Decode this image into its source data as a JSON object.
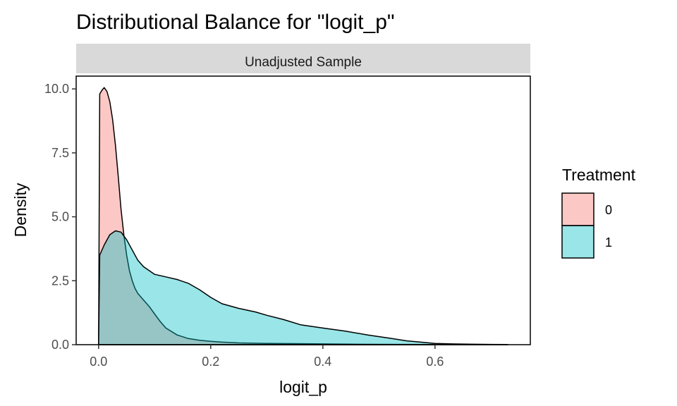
{
  "chart_data": {
    "type": "area",
    "title": "Distributional Balance for \"logit_p\"",
    "facet_label": "Unadjusted Sample",
    "xlabel": "logit_p",
    "ylabel": "Density",
    "xlim": [
      -0.04,
      0.77
    ],
    "ylim": [
      0,
      10.5
    ],
    "x_ticks": [
      0.0,
      0.2,
      0.4,
      0.6
    ],
    "x_tick_labels": [
      "0.0",
      "0.2",
      "0.4",
      "0.6"
    ],
    "y_ticks": [
      0.0,
      2.5,
      5.0,
      7.5,
      10.0
    ],
    "y_tick_labels": [
      "0.0",
      "2.5",
      "5.0",
      "7.5",
      "10.0"
    ],
    "legend": {
      "title": "Treatment",
      "position": "right"
    },
    "grid": false,
    "series": [
      {
        "name": "0",
        "color": "#F8766D",
        "fill_opacity": 0.4,
        "x": [
          0.0,
          0.002,
          0.006,
          0.01,
          0.015,
          0.02,
          0.025,
          0.03,
          0.035,
          0.04,
          0.045,
          0.05,
          0.055,
          0.06,
          0.065,
          0.07,
          0.08,
          0.09,
          0.1,
          0.11,
          0.12,
          0.14,
          0.16,
          0.18,
          0.2,
          0.22,
          0.25,
          0.3,
          0.35,
          0.4,
          0.45,
          0.5,
          0.55,
          0.6
        ],
        "y": [
          0,
          9.8,
          9.95,
          10.05,
          9.9,
          9.5,
          8.8,
          7.8,
          6.6,
          5.3,
          4.3,
          3.5,
          2.9,
          2.5,
          2.2,
          2.0,
          1.75,
          1.5,
          1.2,
          0.9,
          0.65,
          0.38,
          0.24,
          0.17,
          0.13,
          0.1,
          0.07,
          0.05,
          0.04,
          0.03,
          0.02,
          0.015,
          0.01,
          0.005
        ]
      },
      {
        "name": "1",
        "color": "#00BFC4",
        "fill_opacity": 0.4,
        "x": [
          0.0,
          0.002,
          0.01,
          0.02,
          0.03,
          0.04,
          0.05,
          0.06,
          0.07,
          0.08,
          0.1,
          0.12,
          0.14,
          0.16,
          0.18,
          0.2,
          0.22,
          0.25,
          0.28,
          0.3,
          0.33,
          0.36,
          0.4,
          0.44,
          0.48,
          0.52,
          0.55,
          0.58,
          0.6,
          0.63,
          0.66,
          0.7,
          0.73
        ],
        "y": [
          0,
          3.5,
          3.9,
          4.3,
          4.45,
          4.4,
          4.1,
          3.7,
          3.3,
          3.05,
          2.75,
          2.65,
          2.55,
          2.4,
          2.15,
          1.85,
          1.6,
          1.42,
          1.28,
          1.15,
          0.98,
          0.78,
          0.65,
          0.53,
          0.38,
          0.25,
          0.15,
          0.09,
          0.05,
          0.03,
          0.02,
          0.01,
          0.005
        ]
      }
    ]
  }
}
